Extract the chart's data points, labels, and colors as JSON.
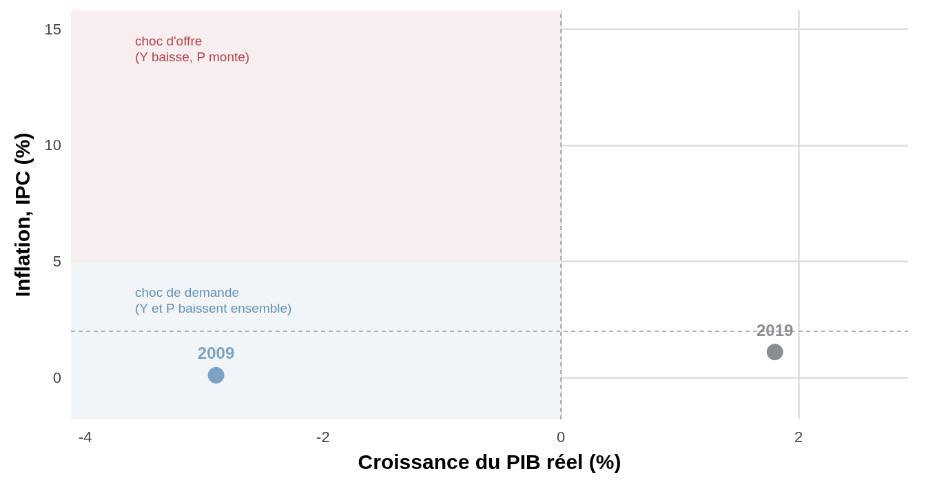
{
  "chart_data": {
    "type": "scatter",
    "xlabel": "Croissance du PIB réel (%)",
    "ylabel": "Inflation, IPC (%)",
    "series": [
      {
        "name": "2009",
        "color": "#5b8db8",
        "x": [
          -2.9
        ],
        "values": [
          0.1
        ]
      },
      {
        "name": "2019",
        "color": "#6c727a",
        "x": [
          1.8
        ],
        "values": [
          1.1
        ]
      }
    ],
    "xlim": [
      -4.12,
      2.92
    ],
    "ylim": [
      -1.8,
      15.8
    ],
    "xticks": [
      -4,
      -2,
      0,
      2
    ],
    "yticks": [
      0,
      5,
      10,
      15
    ],
    "ref_lines": [
      {
        "axis": "x",
        "value": 0,
        "color": "#999999",
        "line_style": "dashed"
      },
      {
        "axis": "y",
        "value": 2,
        "color": "#999999",
        "line_style": "dashed"
      }
    ],
    "bands": [
      {
        "axis": "y",
        "from": 5,
        "to": 15.8,
        "label": "choc d'offre\n(Y baisse, P monte)",
        "color": "#f8eeef"
      },
      {
        "axis": "y",
        "from": -1.8,
        "to": 5,
        "label": "choc de demande\n(Y et P baissent ensemble)",
        "color": "#f1f5f8"
      }
    ],
    "grid": true,
    "legend": false,
    "marker": "circle"
  }
}
